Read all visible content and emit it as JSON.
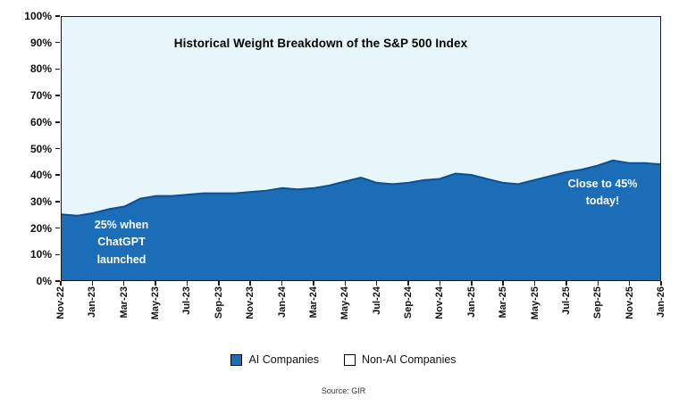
{
  "page": {
    "source": "Source: GIR"
  },
  "chart_data": {
    "type": "area",
    "title": "Historical Weight Breakdown of the S&P 500 Index",
    "xlabel": "",
    "ylabel": "",
    "ylim": [
      0,
      100
    ],
    "ytick_step": 10,
    "ytick_labels": [
      "0%",
      "10%",
      "20%",
      "30%",
      "40%",
      "50%",
      "60%",
      "70%",
      "80%",
      "90%",
      "100%"
    ],
    "grid": false,
    "legend_position": "bottom",
    "months": [
      "Nov-22",
      "Dec-22",
      "Jan-23",
      "Feb-23",
      "Mar-23",
      "Apr-23",
      "May-23",
      "Jun-23",
      "Jul-23",
      "Aug-23",
      "Sep-23",
      "Oct-23",
      "Nov-23",
      "Dec-23",
      "Jan-24",
      "Feb-24",
      "Mar-24",
      "Apr-24",
      "May-24",
      "Jun-24",
      "Jul-24",
      "Aug-24",
      "Sep-24",
      "Oct-24",
      "Nov-24",
      "Dec-24",
      "Jan-25",
      "Feb-25",
      "Mar-25",
      "Apr-25",
      "May-25",
      "Jun-25",
      "Jul-25",
      "Aug-25",
      "Sep-25",
      "Oct-25",
      "Nov-25",
      "Dec-25",
      "Jan-26"
    ],
    "tick_labels": [
      "Nov-22",
      "Jan-23",
      "Mar-23",
      "May-23",
      "Jul-23",
      "Sep-23",
      "Nov-23",
      "Jan-24",
      "Mar-24",
      "May-24",
      "Jul-24",
      "Sep-24",
      "Nov-24",
      "Jan-25",
      "Mar-25",
      "May-25",
      "Jul-25",
      "Sep-25",
      "Nov-25",
      "Jan-26"
    ],
    "series": [
      {
        "name": "AI Companies",
        "values": [
          25,
          24.5,
          25.5,
          27,
          28,
          31,
          32,
          32,
          32.5,
          33,
          33,
          33,
          33.5,
          34,
          35,
          34.5,
          35,
          36,
          37.5,
          39,
          37,
          36.5,
          37,
          38,
          38.5,
          40.5,
          40,
          38.5,
          37,
          36.5,
          38,
          39.5,
          41,
          42,
          43.5,
          45.5,
          44.5,
          44.5,
          44
        ]
      },
      {
        "name": "Non-AI Companies",
        "values_note": "remainder to 100% (stacked complement of AI Companies)"
      }
    ],
    "legend": [
      "AI Companies",
      "Non-AI Companies"
    ],
    "annotations": [
      {
        "text": "25% when\nChatGPT\nlaunched"
      },
      {
        "text": "Close to 45%\ntoday!"
      }
    ],
    "colors": {
      "ai_fill": "#1b6db8",
      "ai_line": "#0f4f8f",
      "nonai_fill": "#e6f6fa",
      "plot_bg": "#e6f6fa",
      "axis": "#1a1a1a",
      "annotation_text": "#ffffff"
    }
  }
}
